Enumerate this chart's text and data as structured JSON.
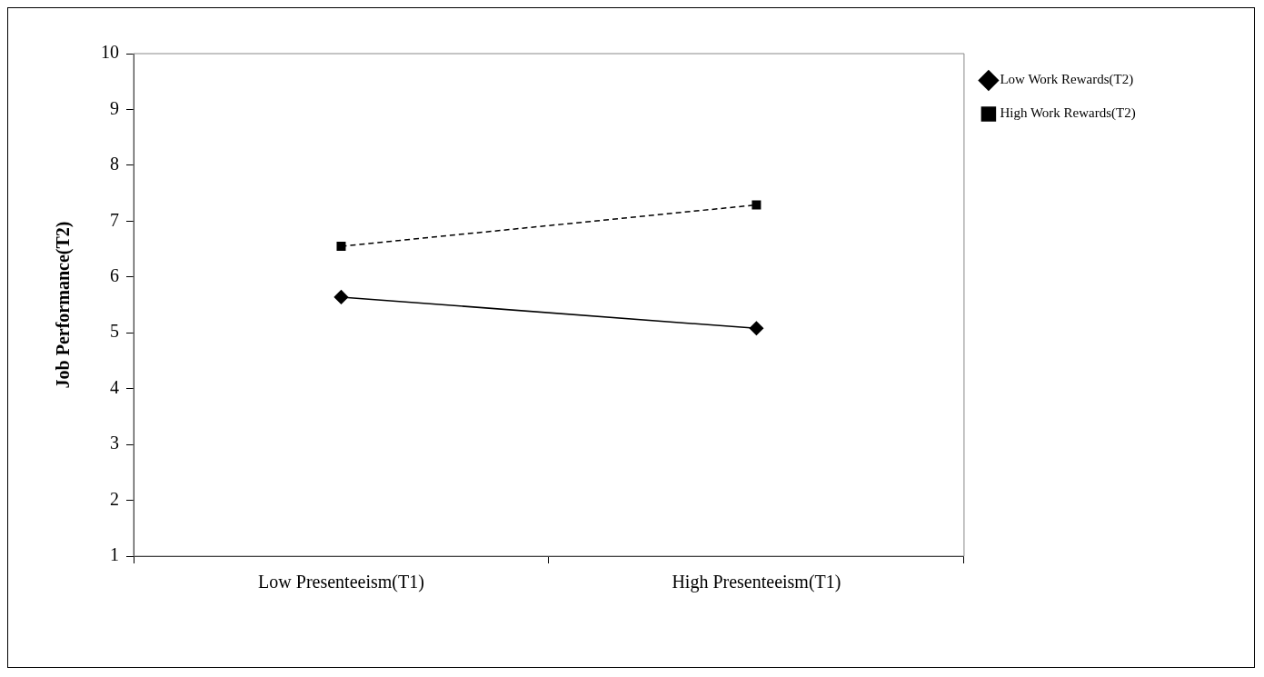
{
  "chart_data": {
    "type": "line",
    "ylabel": "Job Performance(T2)",
    "categories": [
      "Low Presenteeism(T1)",
      "High Presenteeism(T1)"
    ],
    "series": [
      {
        "name": "Low Work Rewards(T2)",
        "color": "#000000",
        "values": [
          5.64,
          5.08
        ],
        "marker": "diamond",
        "line_style": "solid"
      },
      {
        "name": "High Work Rewards(T2)",
        "color": "#000000",
        "values": [
          6.55,
          7.29
        ],
        "marker": "square",
        "line_style": "dashed"
      }
    ],
    "ylim": [
      1,
      10
    ],
    "yticks": [
      1,
      2,
      3,
      4,
      5,
      6,
      7,
      8,
      9,
      10
    ],
    "grid": false,
    "legend": "top right"
  }
}
